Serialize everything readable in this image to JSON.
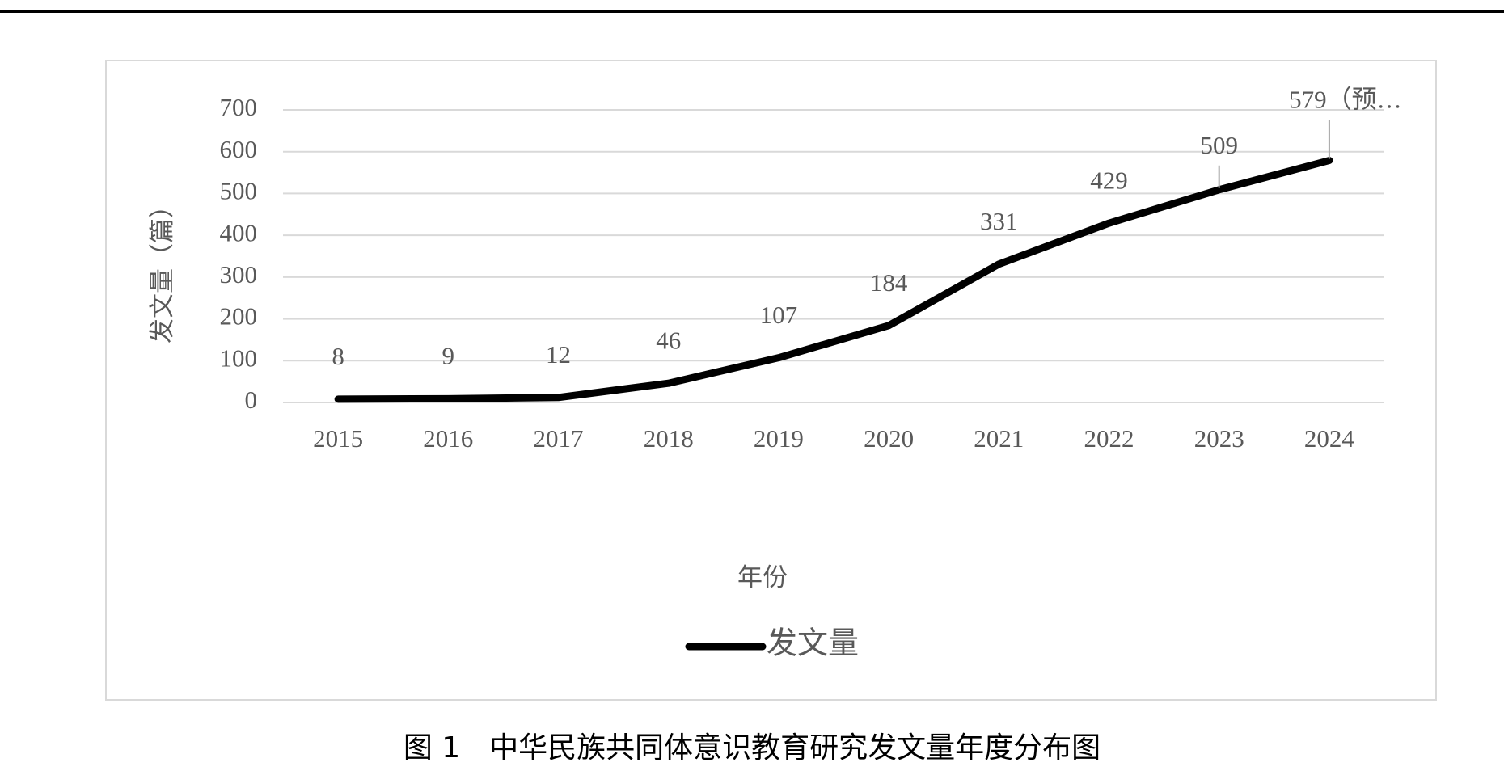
{
  "chart_data": {
    "type": "line",
    "caption": "图 1　中华民族共同体意识教育研究发文量年度分布图",
    "x_label": "年份",
    "y_label": "发文量（篇）",
    "categories": [
      "2015",
      "2016",
      "2017",
      "2018",
      "2019",
      "2020",
      "2021",
      "2022",
      "2023",
      "2024"
    ],
    "series": [
      {
        "name": "发文量",
        "color": "#000000",
        "values": [
          8,
          9,
          12,
          46,
          107,
          184,
          331,
          429,
          509,
          579
        ],
        "value_labels": [
          "8",
          "9",
          "12",
          "46",
          "107",
          "184",
          "331",
          "429",
          "509",
          "579（预…"
        ]
      }
    ],
    "ylim": [
      0,
      700
    ],
    "yticks": [
      0,
      100,
      200,
      300,
      400,
      500,
      600,
      700
    ],
    "grid": true,
    "legend": "bottom"
  }
}
